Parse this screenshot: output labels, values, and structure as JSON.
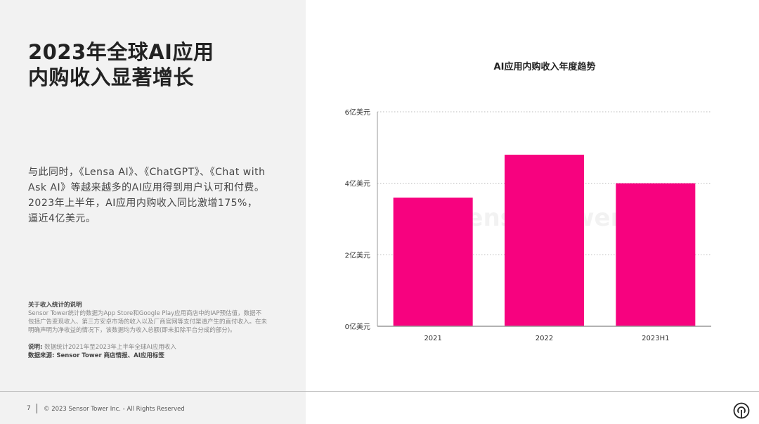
{
  "slide": {
    "title_line1": "2023年全球AI应用",
    "title_line2": "内购收入显著增长",
    "body": "与此同时，《Lensa AI》、《ChatGPT》、《Chat with Ask AI》等越来越多的AI应用得到用户认可和付费。2023年上半年，AI应用内购收入同比激增175%，逼近4亿美元。",
    "note_title": "关于收入统计的说明",
    "note_text": "Sensor Tower统计的数据为App Store和Google Play应用商店中的IAP预估值，数据不包括广告变现收入、第三方安卓市场的收入以及厂商官网等支付渠道产生的直付收入。在未明确声明为净收益的情况下，该数据均为收入总额(即未扣除平台分成的部分)。",
    "desc_label": "说明:",
    "desc_text": "数据统计2021年至2023年上半年全球AI应用收入",
    "source": "数据来源: Sensor Tower 商店情报、AI应用标签"
  },
  "footer": {
    "page": "7",
    "copyright": "© 2023 Sensor Tower Inc. - All Rights Reserved",
    "logo": "sensor-tower-logo-icon"
  },
  "watermark": "SensorTower",
  "chart_data": {
    "type": "bar",
    "title": "AI应用内购收入年度趋势",
    "categories": [
      "2021",
      "2022",
      "2023H1"
    ],
    "values": [
      3.6,
      4.8,
      4.0
    ],
    "ylim": [
      0,
      6
    ],
    "yticks": [
      {
        "v": 0,
        "label": "0亿美元"
      },
      {
        "v": 2,
        "label": "2亿美元"
      },
      {
        "v": 4,
        "label": "4亿美元"
      },
      {
        "v": 6,
        "label": "6亿美元"
      }
    ],
    "grid": true,
    "bar_color": "#f7027f"
  }
}
